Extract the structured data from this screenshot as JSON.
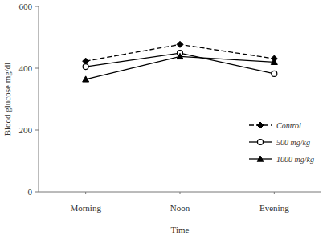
{
  "chart_data": {
    "type": "line",
    "x_label": "Time",
    "y_label": "Blood glucose mg/dl",
    "categories": [
      "Morning",
      "Noon",
      "Evening"
    ],
    "series": [
      {
        "name": "Control",
        "color": "#000000",
        "marker": "diamond",
        "line_style": "dashed",
        "values": [
          423,
          477,
          431
        ]
      },
      {
        "name": "500 mg/kg",
        "color": "#000000",
        "marker": "open_circle",
        "line_style": "solid",
        "values": [
          405,
          449,
          382
        ]
      },
      {
        "name": "1000 mg/kg",
        "color": "#000000",
        "marker": "triangle",
        "line_style": "solid",
        "values": [
          364,
          438,
          420
        ]
      }
    ],
    "ylim": [
      0,
      600
    ],
    "yticks": [
      0,
      200,
      400,
      600
    ],
    "grid": false,
    "legend": "lower right"
  }
}
